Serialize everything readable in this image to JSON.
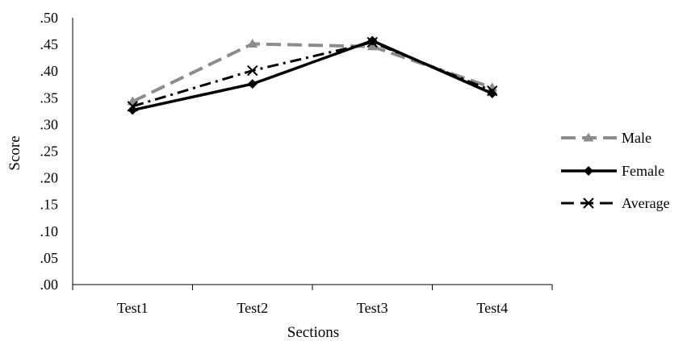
{
  "chart_data": {
    "type": "line",
    "categories": [
      "Test1",
      "Test2",
      "Test3",
      "Test4"
    ],
    "xlabel": "Sections",
    "ylabel": "Score",
    "ylim": [
      0,
      0.5
    ],
    "yticks": [
      ".00",
      ".05",
      ".10",
      ".15",
      ".20",
      ".25",
      ".30",
      ".35",
      ".40",
      ".45",
      ".50"
    ],
    "grid": false,
    "legend_position": "right",
    "series": [
      {
        "name": "Male",
        "values": [
          0.343,
          0.451,
          0.446,
          0.369
        ],
        "color": "#8c8c8c",
        "marker": "triangle",
        "dash": "long-dash"
      },
      {
        "name": "Female",
        "values": [
          0.327,
          0.376,
          0.457,
          0.358
        ],
        "color": "#000000",
        "marker": "diamond",
        "dash": "solid"
      },
      {
        "name": "Average",
        "values": [
          0.334,
          0.401,
          0.454,
          0.363
        ],
        "color": "#000000",
        "marker": "x",
        "dash": "dash-dot"
      }
    ]
  }
}
